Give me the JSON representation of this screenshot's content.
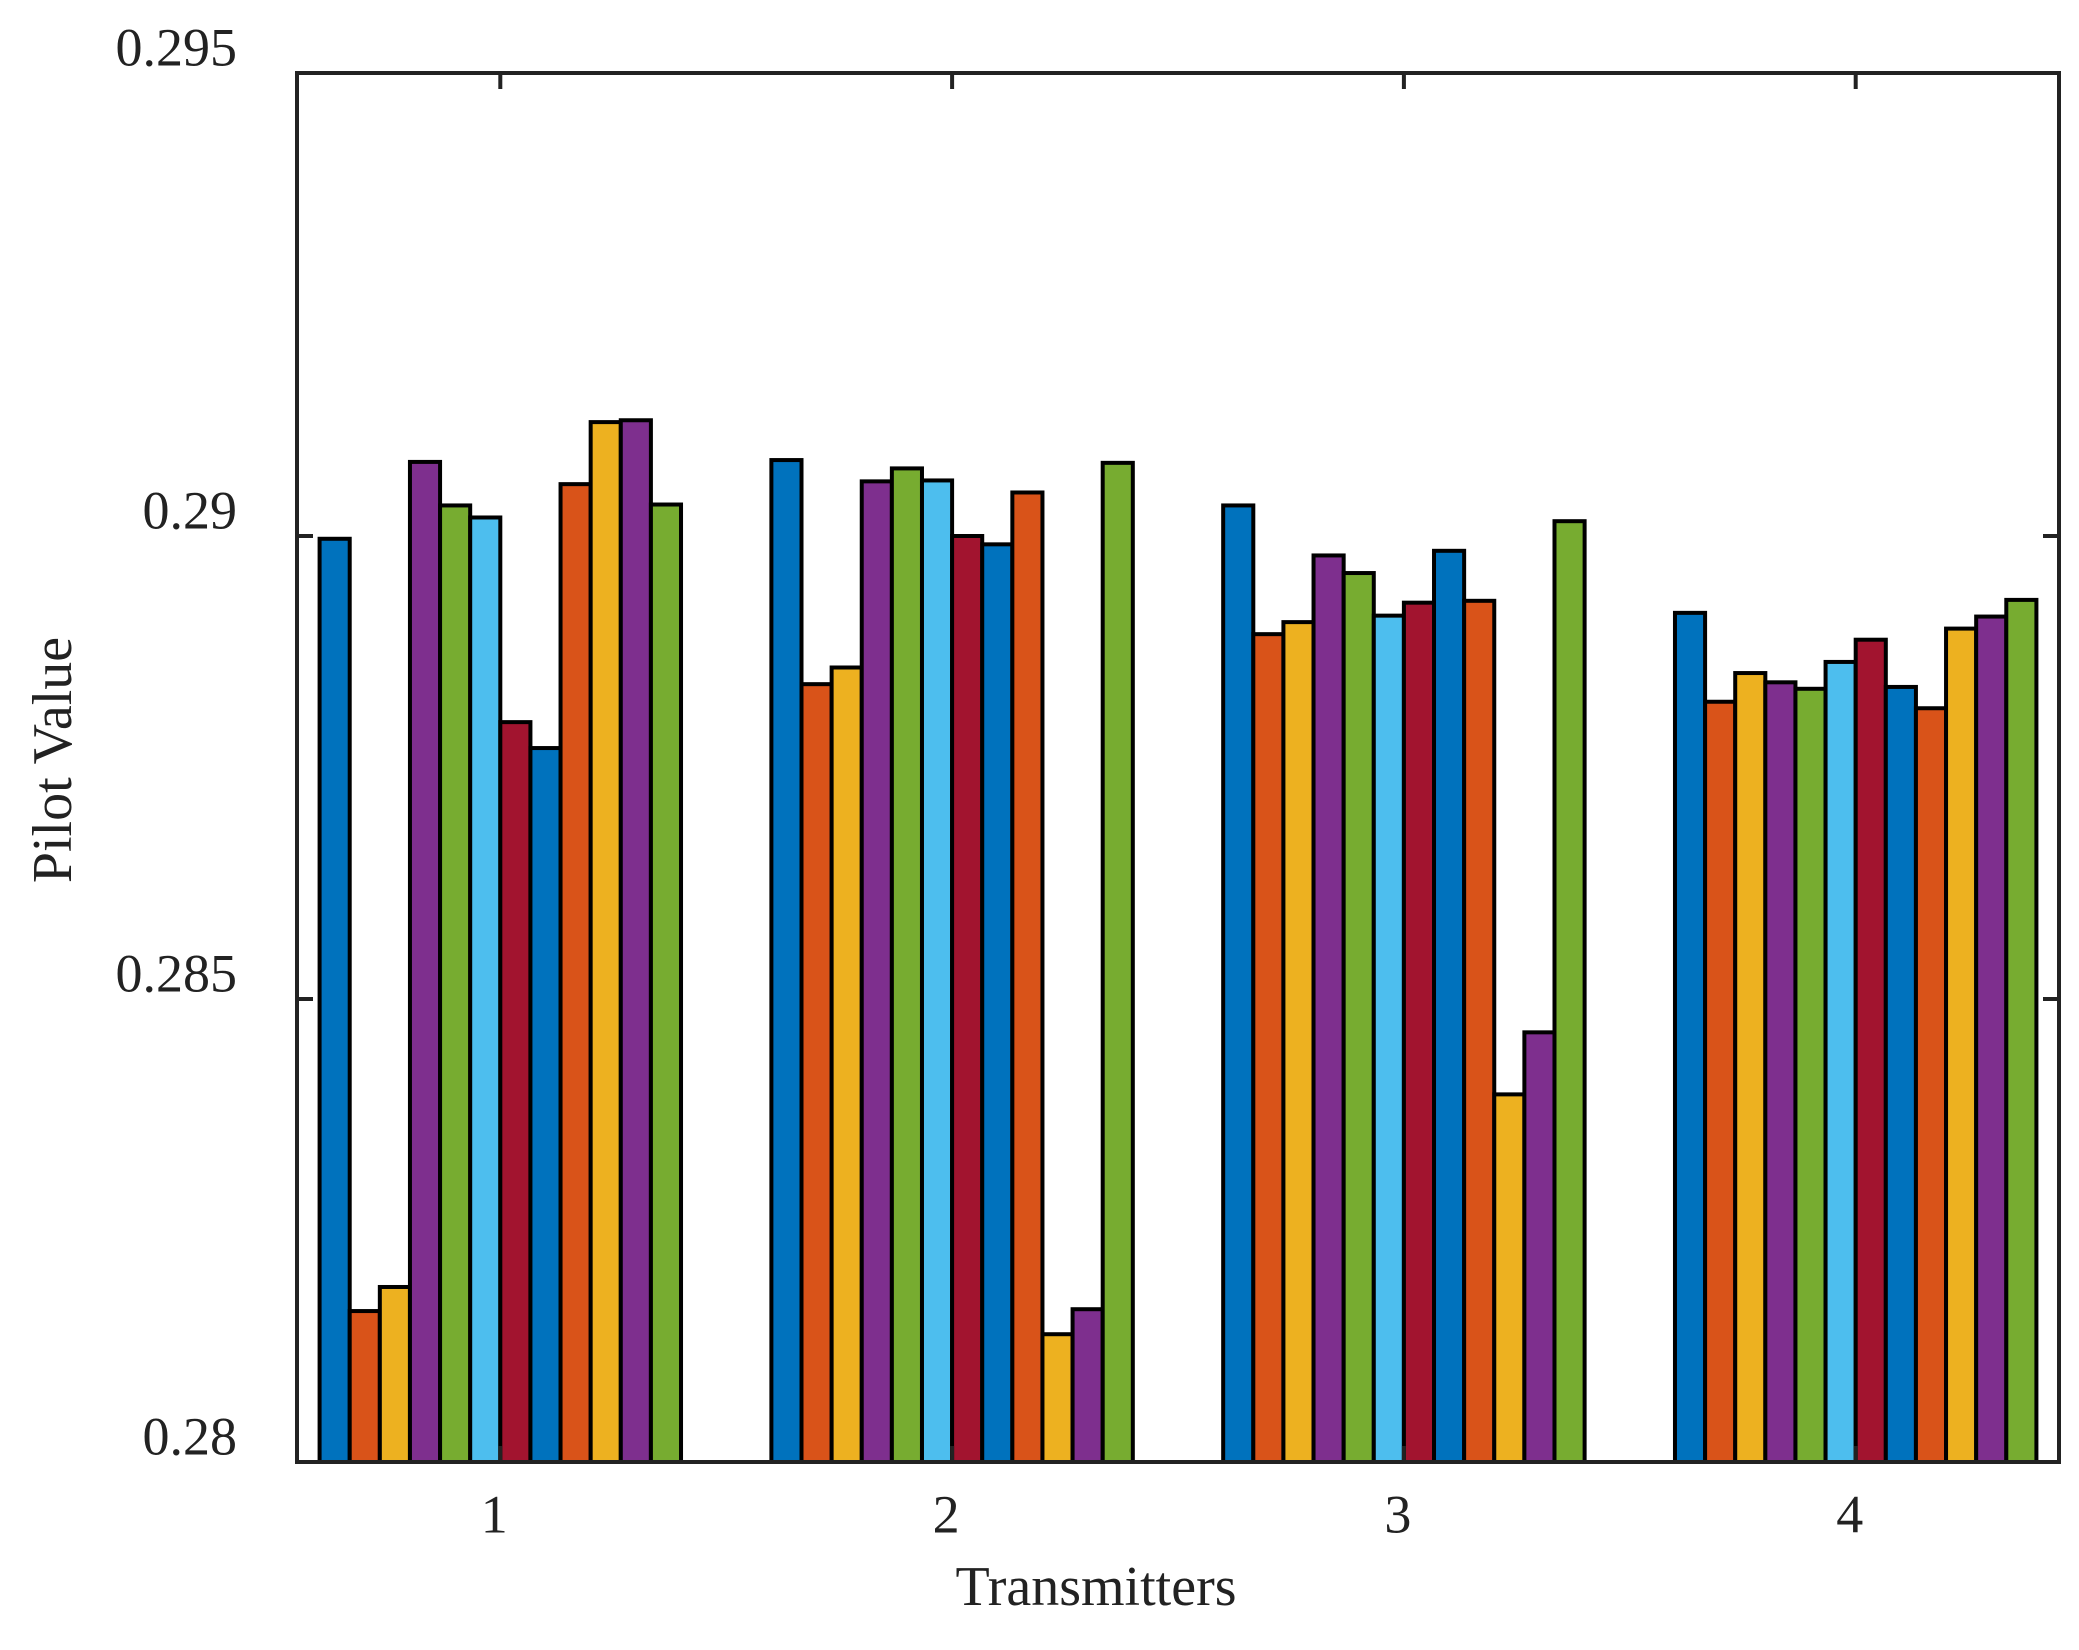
{
  "chart_data": {
    "type": "bar",
    "xlabel": "Transmitters",
    "ylabel": "Pilot Value",
    "categories": [
      "1",
      "2",
      "3",
      "4"
    ],
    "ylim": [
      0.28,
      0.295
    ],
    "yticks": [
      0.28,
      0.285,
      0.29,
      0.295
    ],
    "series": [
      {
        "color": "#0072bd",
        "values": [
          0.28997,
          0.29082,
          0.29033,
          0.28917
        ]
      },
      {
        "color": "#d95319",
        "values": [
          0.28163,
          0.2884,
          0.28894,
          0.28821
        ]
      },
      {
        "color": "#edb120",
        "values": [
          0.28189,
          0.28858,
          0.28907,
          0.28852
        ]
      },
      {
        "color": "#7e2f8e",
        "values": [
          0.2908,
          0.29059,
          0.28979,
          0.28842
        ]
      },
      {
        "color": "#77ac30",
        "values": [
          0.29033,
          0.29073,
          0.2896,
          0.28835
        ]
      },
      {
        "color": "#4dbeee",
        "values": [
          0.2902,
          0.2906,
          0.28914,
          0.28864
        ]
      },
      {
        "color": "#a2142f",
        "values": [
          0.28799,
          0.29,
          0.28928,
          0.28888
        ]
      },
      {
        "color": "#0072bd",
        "values": [
          0.28771,
          0.28991,
          0.28984,
          0.28837
        ]
      },
      {
        "color": "#d95319",
        "values": [
          0.29056,
          0.29047,
          0.2893,
          0.28814
        ]
      },
      {
        "color": "#edb120",
        "values": [
          0.29123,
          0.28138,
          0.28397,
          0.289
        ]
      },
      {
        "color": "#7e2f8e",
        "values": [
          0.29125,
          0.28165,
          0.28464,
          0.28913
        ]
      },
      {
        "color": "#77ac30",
        "values": [
          0.29034,
          0.29079,
          0.29016,
          0.28931
        ]
      }
    ]
  }
}
